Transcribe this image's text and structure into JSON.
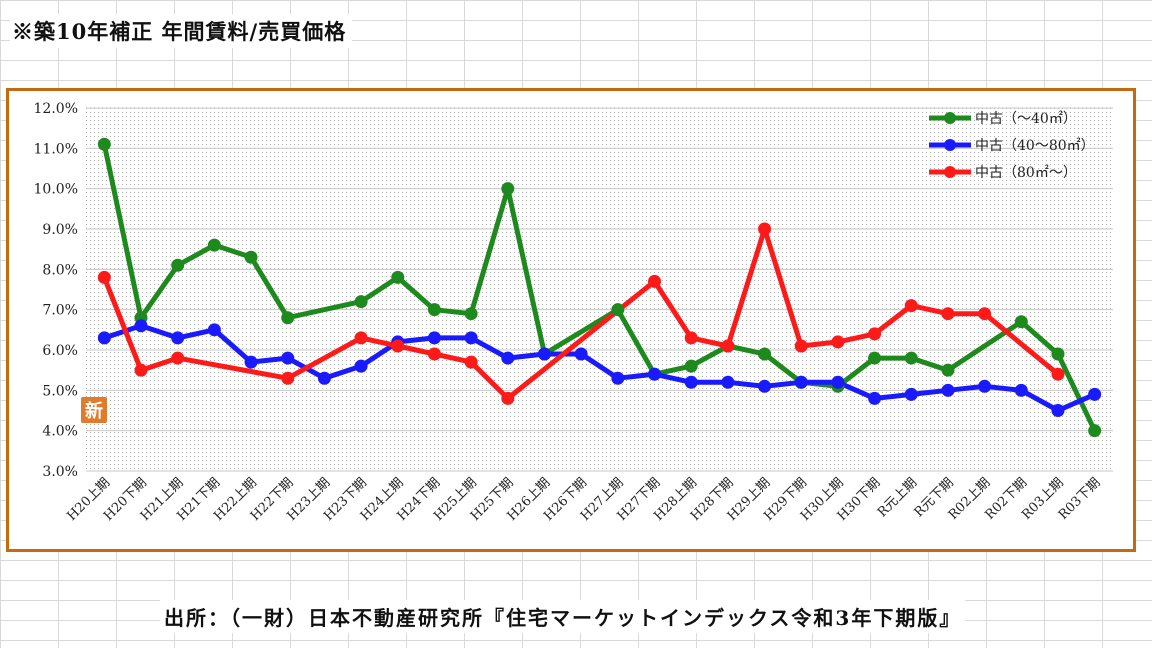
{
  "header": {
    "title": "※築10年補正 年間賃料/売買価格"
  },
  "footer": {
    "source": "出所：（一財）日本不動産研究所『住宅マーケットインデックス令和3年下期版』"
  },
  "badge": {
    "label": "新",
    "color": "#e07b2c"
  },
  "colors": {
    "frame": "#c46a10",
    "grid": "#c8c8c8",
    "dots": "#b0b0b0"
  },
  "chart_data": {
    "type": "line",
    "title": "",
    "xlabel": "",
    "ylabel": "",
    "ylim": [
      3.0,
      12.0
    ],
    "yticks": [
      "3.0%",
      "4.0%",
      "5.0%",
      "6.0%",
      "7.0%",
      "8.0%",
      "9.0%",
      "10.0%",
      "11.0%",
      "12.0%"
    ],
    "grid": true,
    "legend_position": "top-right",
    "categories": [
      "H20上期",
      "H20下期",
      "H21上期",
      "H21下期",
      "H22上期",
      "H22下期",
      "H23上期",
      "H23下期",
      "H24上期",
      "H24下期",
      "H25上期",
      "H25下期",
      "H26上期",
      "H26下期",
      "H27上期",
      "H27下期",
      "H28上期",
      "H28下期",
      "H29上期",
      "H29下期",
      "H30上期",
      "H30下期",
      "R元上期",
      "R元下期",
      "R02上期",
      "R02下期",
      "R03上期",
      "R03下期"
    ],
    "series": [
      {
        "name": "中古（～40㎡）",
        "color": "#1e8a1e",
        "values": [
          11.1,
          6.8,
          8.1,
          8.6,
          8.3,
          6.8,
          null,
          7.2,
          7.8,
          7.0,
          6.9,
          10.0,
          5.9,
          null,
          7.0,
          5.4,
          5.6,
          6.1,
          5.9,
          5.2,
          5.1,
          5.8,
          5.8,
          5.5,
          null,
          6.7,
          5.9,
          4.0
        ]
      },
      {
        "name": "中古（40～80㎡）",
        "color": "#1a1aff",
        "values": [
          6.3,
          6.6,
          6.3,
          6.5,
          5.7,
          5.8,
          5.3,
          5.6,
          6.2,
          6.3,
          6.3,
          5.8,
          5.9,
          5.9,
          5.3,
          5.4,
          5.2,
          5.2,
          5.1,
          5.2,
          5.2,
          4.8,
          4.9,
          5.0,
          5.1,
          5.0,
          4.5,
          4.9
        ]
      },
      {
        "name": "中古（80㎡～）",
        "color": "#ff1a1a",
        "values": [
          7.8,
          5.5,
          5.8,
          null,
          null,
          5.3,
          null,
          6.3,
          6.1,
          5.9,
          5.7,
          4.8,
          null,
          null,
          null,
          7.7,
          6.3,
          6.1,
          9.0,
          6.1,
          6.2,
          6.4,
          7.1,
          6.9,
          6.9,
          null,
          5.4,
          null
        ]
      }
    ]
  }
}
